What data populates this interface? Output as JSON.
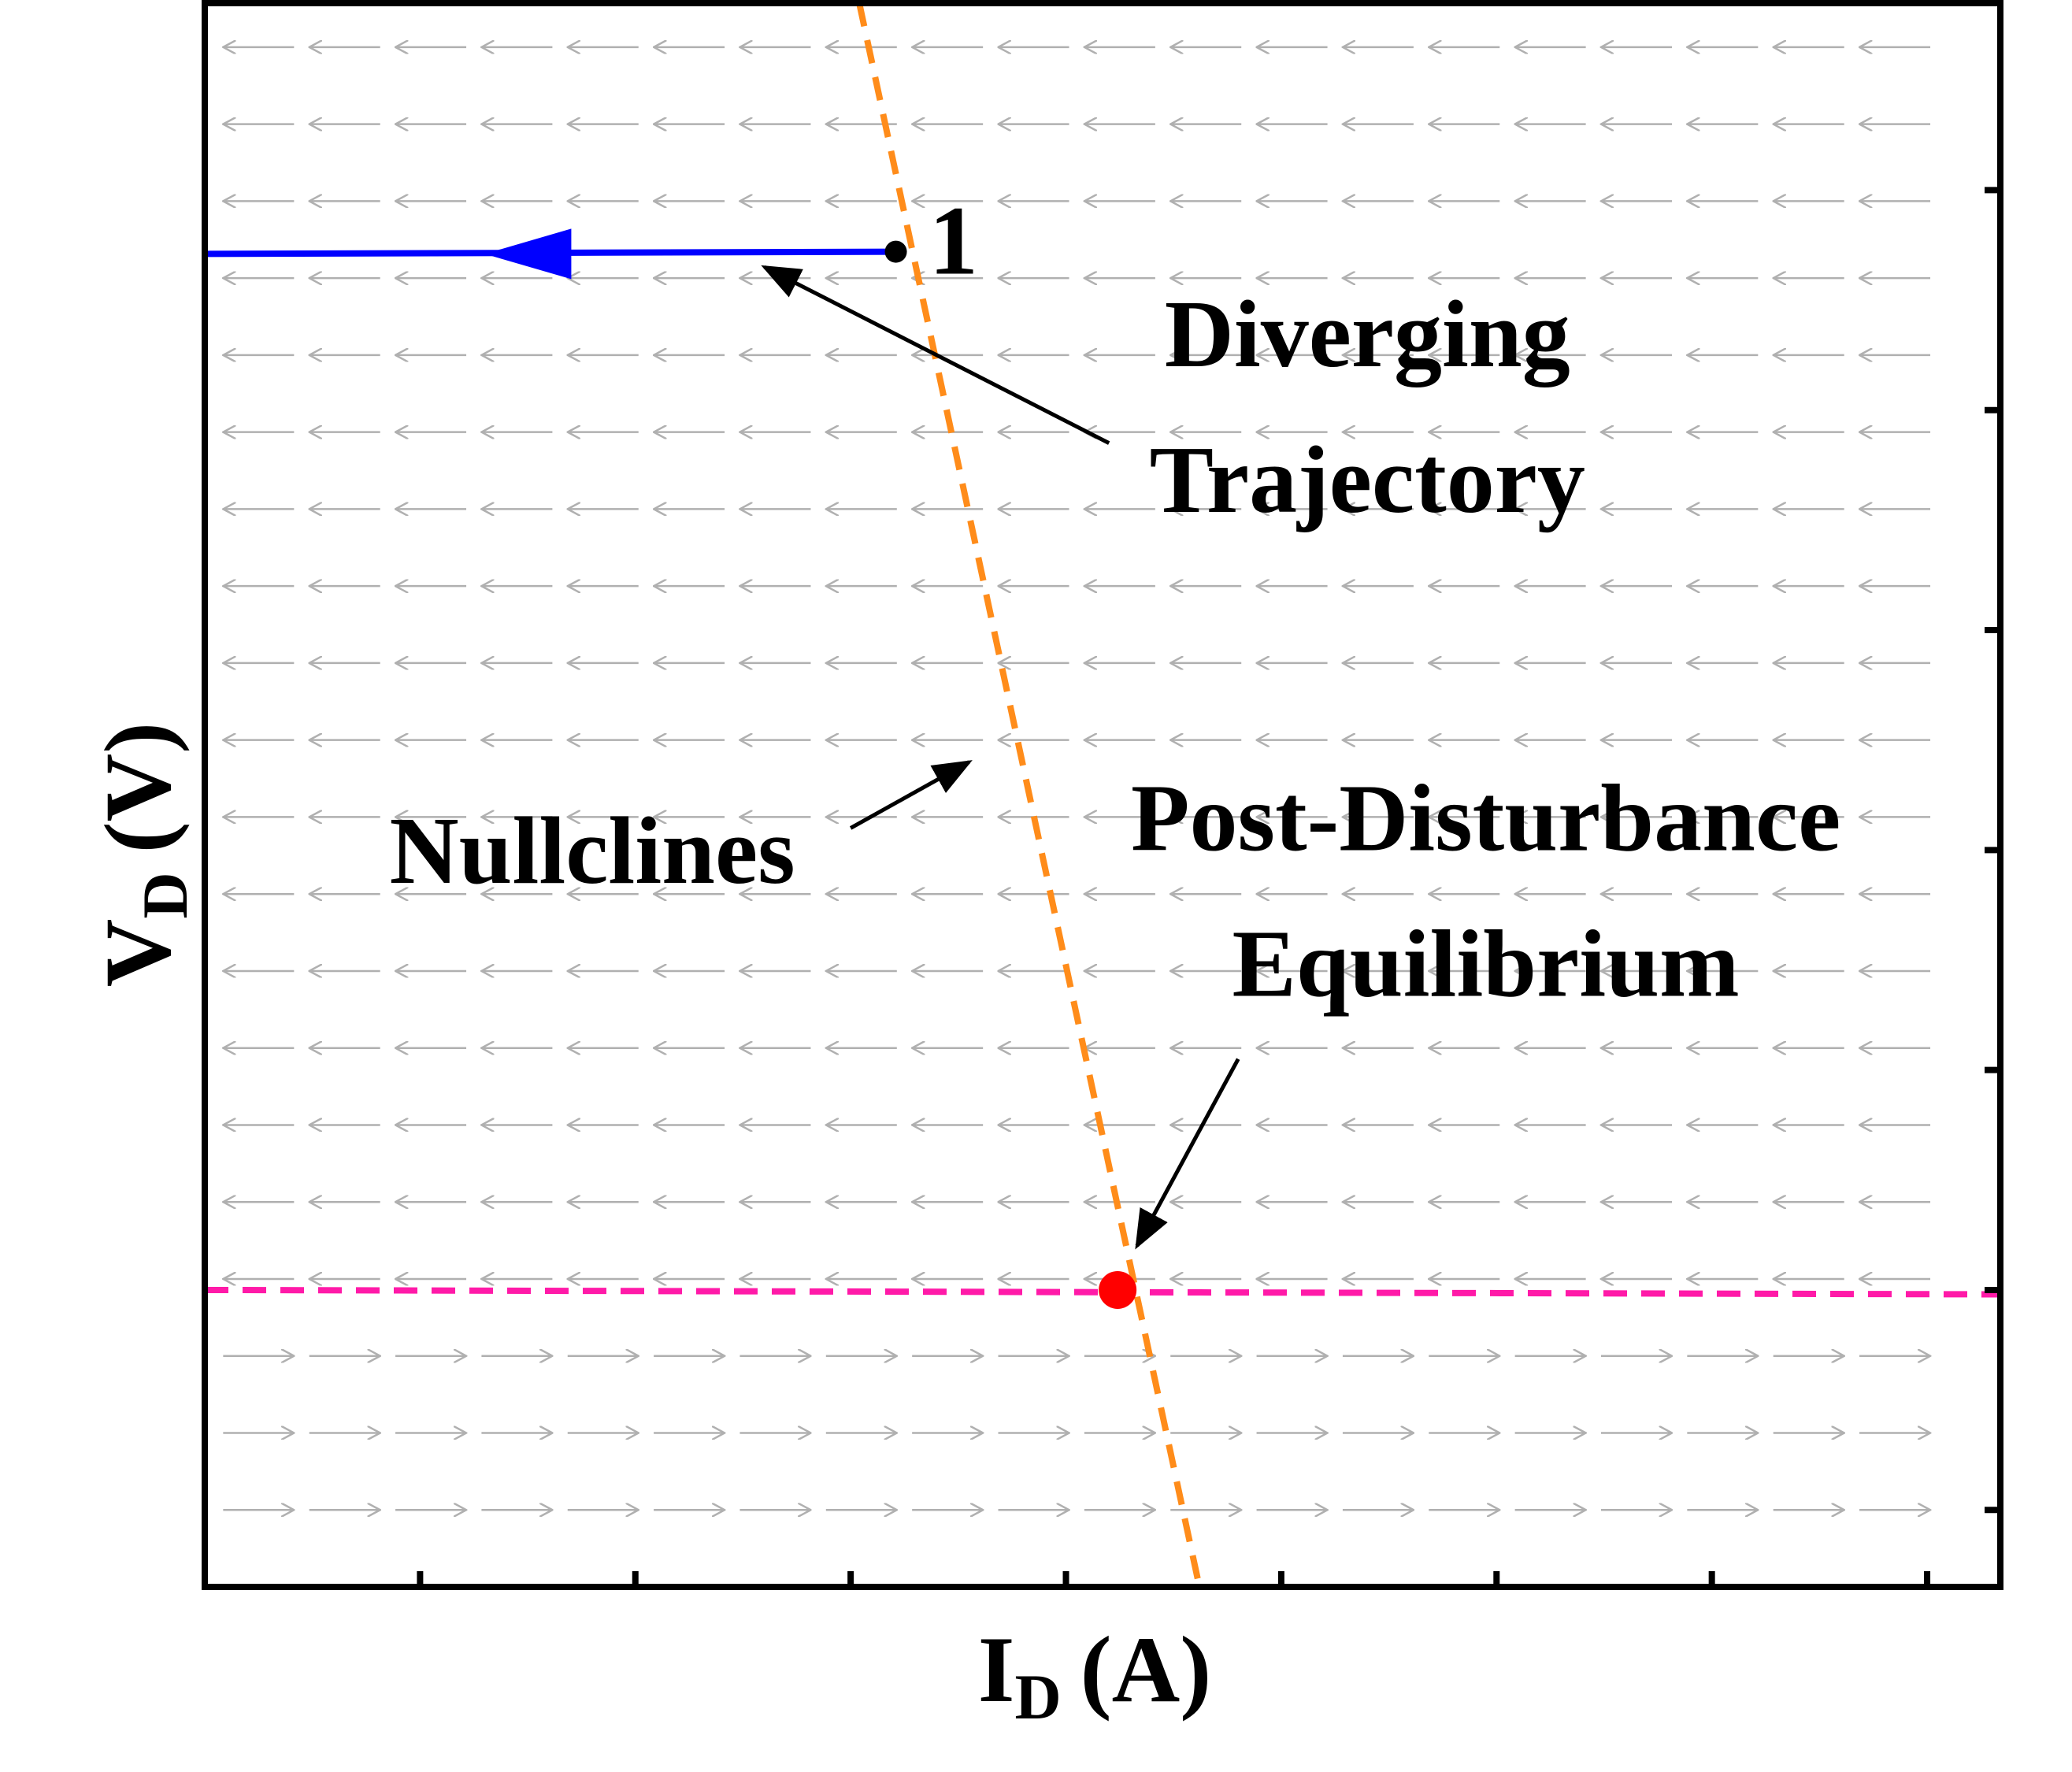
{
  "chart_data": {
    "type": "line",
    "title": "",
    "xlabel": {
      "main": "I",
      "sub": "D",
      "unit": "(A)"
    },
    "ylabel": {
      "main": "V",
      "sub": "D",
      "unit": "(V)"
    },
    "tick_labels": "none",
    "xlim": [
      0,
      8.34
    ],
    "ylim": [
      0,
      7.2
    ],
    "x_ticks": [
      1,
      2,
      3,
      4,
      5,
      6,
      7,
      8
    ],
    "y_ticks": [
      0.35,
      1.35,
      2.35,
      3.35,
      4.35,
      5.35,
      6.35
    ],
    "grid": false,
    "series": [
      {
        "role": "trajectory",
        "color": "#0000ff",
        "style": "solid",
        "points": [
          [
            3.21,
            6.07
          ],
          [
            0.0,
            6.06
          ],
          [
            0.0,
            0.0
          ]
        ],
        "direction_arrow_at": [
          1.3,
          6.06
        ]
      },
      {
        "role": "nullcline-1",
        "color": "#ff8c1a",
        "style": "dashed",
        "points": [
          [
            3.04,
            7.2
          ],
          [
            4.62,
            0.0
          ]
        ]
      },
      {
        "role": "nullcline-2",
        "color": "#ff1aa8",
        "style": "dashed",
        "points": [
          [
            0.0,
            1.35
          ],
          [
            8.34,
            1.33
          ]
        ]
      }
    ],
    "points": [
      {
        "id": "initial",
        "label": "1",
        "x": 3.21,
        "y": 6.07,
        "color": "#000000"
      },
      {
        "id": "equilibrium",
        "label": "",
        "x": 4.24,
        "y": 1.35,
        "color": "#ff0000"
      }
    ],
    "vector_field": {
      "color": "#b0b0b0",
      "x_start": 0.25,
      "x_step": 0.4,
      "x_count": 20,
      "y_start": 0.35,
      "y_step": 0.35,
      "y_count": 20,
      "flip_below_y": 1.35
    },
    "annotations": [
      {
        "id": "diverging",
        "lines": [
          "Diverging",
          "Trajectory"
        ],
        "text_x": 5.4,
        "text_y": 5.55,
        "arrow_from": [
          4.2,
          5.2
        ],
        "arrow_to": [
          2.6,
          6.0
        ]
      },
      {
        "id": "nullclines",
        "lines": [
          "Nullclines"
        ],
        "text_x": 1.8,
        "text_y": 3.2,
        "arrow_from": [
          3.0,
          3.45
        ],
        "arrow_to": [
          3.55,
          3.75
        ]
      },
      {
        "id": "equilibrium",
        "lines": [
          "Post-Disturbance",
          "Equilibrium"
        ],
        "text_x": 5.95,
        "text_y": 3.35,
        "arrow_from": [
          4.8,
          2.4
        ],
        "arrow_to": [
          4.33,
          1.55
        ]
      }
    ]
  }
}
